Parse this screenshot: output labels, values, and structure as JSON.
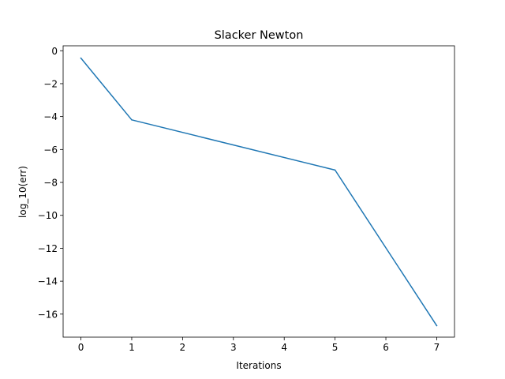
{
  "chart_data": {
    "type": "line",
    "title": "Slacker Newton",
    "xlabel": "Iterations",
    "ylabel": "log_10(err)",
    "xlim": [
      -0.35,
      7.35
    ],
    "ylim": [
      -17.4,
      0.3
    ],
    "xticks": [
      0,
      1,
      2,
      3,
      4,
      5,
      6,
      7
    ],
    "xtick_labels": [
      "0",
      "1",
      "2",
      "3",
      "4",
      "5",
      "6",
      "7"
    ],
    "yticks": [
      0,
      -2,
      -4,
      -6,
      -8,
      -10,
      -12,
      -14,
      -16
    ],
    "ytick_labels": [
      "0",
      "−2",
      "−4",
      "−6",
      "−8",
      "−10",
      "−12",
      "−14",
      "−16"
    ],
    "grid": false,
    "series": [
      {
        "color": "#1f77b4",
        "x": [
          0,
          1,
          5,
          7
        ],
        "y": [
          -0.45,
          -4.2,
          -7.25,
          -16.7
        ]
      }
    ]
  }
}
